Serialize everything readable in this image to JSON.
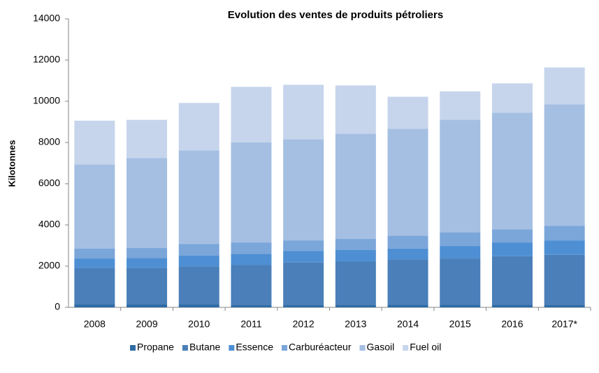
{
  "chart_data": {
    "type": "stacked_bar",
    "title": "Evolution des ventes de produits pétroliers",
    "y_label": "Kilotonnes",
    "categories": [
      "2008",
      "2009",
      "2010",
      "2011",
      "2012",
      "2013",
      "2014",
      "2015",
      "2016",
      "2017*"
    ],
    "series": [
      {
        "name": "Propane",
        "color": "#2f6ba6",
        "values": [
          150,
          150,
          150,
          130,
          130,
          130,
          120,
          120,
          120,
          130
        ]
      },
      {
        "name": "Butane",
        "color": "#4a7fb9",
        "values": [
          1750,
          1750,
          1830,
          1920,
          2050,
          2090,
          2200,
          2250,
          2360,
          2420
        ]
      },
      {
        "name": "Essence",
        "color": "#4e8fd3",
        "values": [
          470,
          500,
          540,
          550,
          550,
          560,
          530,
          610,
          670,
          700
        ]
      },
      {
        "name": "Carburéacteur",
        "color": "#7ba6da",
        "values": [
          480,
          480,
          560,
          550,
          520,
          540,
          630,
          660,
          640,
          710
        ]
      },
      {
        "name": "Gasoil",
        "color": "#a5bfe3",
        "values": [
          4080,
          4370,
          4540,
          4850,
          4900,
          5110,
          5180,
          5460,
          5660,
          5890
        ]
      },
      {
        "name": "Fuel oil",
        "color": "#c6d5ec",
        "values": [
          2130,
          1850,
          2300,
          2700,
          2650,
          2340,
          1560,
          1380,
          1420,
          1790
        ]
      }
    ],
    "ylim": [
      0,
      14000
    ],
    "yticks": [
      0,
      2000,
      4000,
      6000,
      8000,
      10000,
      12000,
      14000
    ],
    "grid": false,
    "legend": "bottom"
  }
}
